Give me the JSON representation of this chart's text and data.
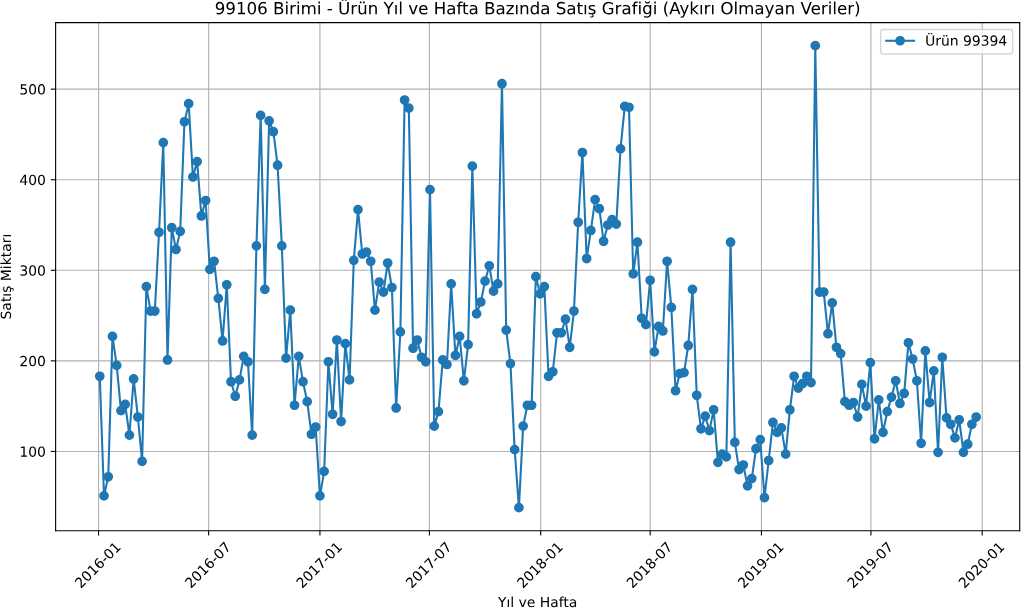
{
  "chart_data": {
    "type": "line",
    "title": "99106 Birimi - Ürün Yıl ve Hafta Bazında Satış Grafiği (Aykırı Olmayan Veriler)",
    "xlabel": "Yıl ve Hafta",
    "ylabel": "Satış Miktarı",
    "x": [
      "2016-01-03",
      "2016-01-10",
      "2016-01-17",
      "2016-01-24",
      "2016-01-31",
      "2016-02-07",
      "2016-02-14",
      "2016-02-21",
      "2016-02-28",
      "2016-03-06",
      "2016-03-13",
      "2016-03-20",
      "2016-03-27",
      "2016-04-03",
      "2016-04-10",
      "2016-04-17",
      "2016-04-24",
      "2016-05-01",
      "2016-05-08",
      "2016-05-15",
      "2016-05-22",
      "2016-05-29",
      "2016-06-05",
      "2016-06-12",
      "2016-06-19",
      "2016-06-26",
      "2016-07-03",
      "2016-07-10",
      "2016-07-17",
      "2016-07-24",
      "2016-07-31",
      "2016-08-07",
      "2016-08-14",
      "2016-08-21",
      "2016-08-28",
      "2016-09-04",
      "2016-09-11",
      "2016-09-18",
      "2016-09-25",
      "2016-10-02",
      "2016-10-09",
      "2016-10-16",
      "2016-10-23",
      "2016-10-30",
      "2016-11-06",
      "2016-11-13",
      "2016-11-20",
      "2016-11-27",
      "2016-12-04",
      "2016-12-11",
      "2016-12-18",
      "2016-12-25",
      "2017-01-01",
      "2017-01-08",
      "2017-01-15",
      "2017-01-22",
      "2017-01-29",
      "2017-02-05",
      "2017-02-12",
      "2017-02-19",
      "2017-02-26",
      "2017-03-05",
      "2017-03-12",
      "2017-03-19",
      "2017-03-26",
      "2017-04-02",
      "2017-04-09",
      "2017-04-16",
      "2017-04-23",
      "2017-04-30",
      "2017-05-07",
      "2017-05-14",
      "2017-05-21",
      "2017-05-28",
      "2017-06-04",
      "2017-06-11",
      "2017-06-18",
      "2017-06-25",
      "2017-07-02",
      "2017-07-09",
      "2017-07-16",
      "2017-07-23",
      "2017-07-30",
      "2017-08-06",
      "2017-08-13",
      "2017-08-20",
      "2017-08-27",
      "2017-09-03",
      "2017-09-10",
      "2017-09-17",
      "2017-09-24",
      "2017-10-01",
      "2017-10-08",
      "2017-10-15",
      "2017-10-22",
      "2017-10-29",
      "2017-11-05",
      "2017-11-12",
      "2017-11-19",
      "2017-11-26",
      "2017-12-03",
      "2017-12-10",
      "2017-12-17",
      "2017-12-24",
      "2017-12-31",
      "2018-01-07",
      "2018-01-14",
      "2018-01-21",
      "2018-01-28",
      "2018-02-04",
      "2018-02-11",
      "2018-02-18",
      "2018-02-25",
      "2018-03-04",
      "2018-03-11",
      "2018-03-18",
      "2018-03-25",
      "2018-04-01",
      "2018-04-08",
      "2018-04-15",
      "2018-04-22",
      "2018-04-29",
      "2018-05-06",
      "2018-05-13",
      "2018-05-20",
      "2018-05-27",
      "2018-06-03",
      "2018-06-10",
      "2018-06-17",
      "2018-06-24",
      "2018-07-01",
      "2018-07-08",
      "2018-07-15",
      "2018-07-22",
      "2018-07-29",
      "2018-08-05",
      "2018-08-12",
      "2018-08-19",
      "2018-08-26",
      "2018-09-02",
      "2018-09-09",
      "2018-09-16",
      "2018-09-23",
      "2018-09-30",
      "2018-10-07",
      "2018-10-14",
      "2018-10-21",
      "2018-10-28",
      "2018-11-04",
      "2018-11-11",
      "2018-11-18",
      "2018-11-25",
      "2018-12-02",
      "2018-12-09",
      "2018-12-16",
      "2018-12-23",
      "2018-12-30",
      "2019-01-06",
      "2019-01-13",
      "2019-01-20",
      "2019-01-27",
      "2019-02-03",
      "2019-02-10",
      "2019-02-17",
      "2019-02-24",
      "2019-03-03",
      "2019-03-10",
      "2019-03-17",
      "2019-03-24",
      "2019-03-31",
      "2019-04-07",
      "2019-04-14",
      "2019-04-21",
      "2019-04-28",
      "2019-05-05",
      "2019-05-12",
      "2019-05-19",
      "2019-05-26",
      "2019-06-02",
      "2019-06-09",
      "2019-06-16",
      "2019-06-23",
      "2019-06-30",
      "2019-07-07",
      "2019-07-14",
      "2019-07-21",
      "2019-07-28",
      "2019-08-04",
      "2019-08-11",
      "2019-08-18",
      "2019-08-25",
      "2019-09-01",
      "2019-09-08",
      "2019-09-15",
      "2019-09-22",
      "2019-09-29",
      "2019-10-06",
      "2019-10-13",
      "2019-10-20",
      "2019-10-27",
      "2019-11-03",
      "2019-11-10",
      "2019-11-17",
      "2019-11-24",
      "2019-12-01",
      "2019-12-08",
      "2019-12-15",
      "2019-12-22"
    ],
    "series": [
      {
        "name": "Ürün 99394",
        "color": "#1f77b4",
        "values": [
          183,
          51,
          72,
          227,
          195,
          145,
          152,
          118,
          180,
          138,
          89,
          282,
          255,
          255,
          342,
          441,
          201,
          347,
          323,
          343,
          464,
          484,
          403,
          420,
          360,
          377,
          301,
          310,
          269,
          222,
          284,
          177,
          161,
          179,
          205,
          199,
          118,
          327,
          471,
          279,
          465,
          453,
          416,
          327,
          203,
          256,
          151,
          205,
          177,
          155,
          119,
          127,
          51,
          78,
          199,
          141,
          223,
          133,
          219,
          179,
          311,
          367,
          318,
          320,
          310,
          256,
          287,
          276,
          308,
          281,
          148,
          232,
          488,
          479,
          214,
          223,
          204,
          199,
          389,
          128,
          144,
          201,
          196,
          285,
          206,
          227,
          178,
          218,
          415,
          252,
          265,
          288,
          305,
          277,
          285,
          506,
          234,
          197,
          102,
          38,
          128,
          151,
          151,
          293,
          274,
          282,
          183,
          188,
          231,
          231,
          246,
          215,
          255,
          353,
          430,
          313,
          344,
          378,
          368,
          332,
          350,
          356,
          351,
          434,
          481,
          480,
          296,
          331,
          247,
          240,
          289,
          210,
          238,
          233,
          310,
          259,
          167,
          186,
          187,
          217,
          279,
          162,
          125,
          139,
          123,
          146,
          88,
          97,
          94,
          331,
          110,
          80,
          85,
          62,
          70,
          103,
          113,
          49,
          90,
          132,
          121,
          126,
          97,
          146,
          183,
          170,
          175,
          183,
          176,
          548,
          276,
          276,
          230,
          264,
          215,
          208,
          155,
          151,
          154,
          138,
          174,
          150,
          198,
          114,
          157,
          121,
          144,
          160,
          178,
          153,
          164,
          220,
          202,
          178,
          109,
          211,
          154,
          189,
          99,
          204,
          137,
          130,
          115,
          135,
          99,
          108,
          130,
          138
        ]
      }
    ],
    "xlim": [
      "2015-10-22",
      "2020-03-03"
    ],
    "xticks": [
      "2016-01",
      "2016-07",
      "2017-01",
      "2017-07",
      "2018-01",
      "2018-07",
      "2019-01",
      "2019-07",
      "2020-01"
    ],
    "ylim": [
      12.5,
      573.5
    ],
    "yticks": [
      100,
      200,
      300,
      400,
      500
    ],
    "grid": true,
    "legend": "top right",
    "marker": "circle",
    "line_style": "solid"
  }
}
